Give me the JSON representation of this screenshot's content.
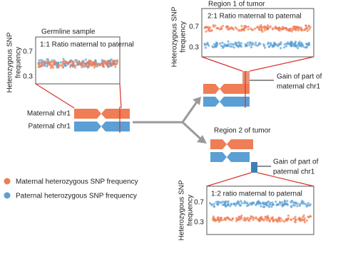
{
  "germline": {
    "title": "Germline sample",
    "ratio": "1:1 Ratio maternal to paternal",
    "y_axis_label": [
      "Heterozygous SNP",
      "frequency"
    ],
    "ticks": [
      "0.7",
      "0.3"
    ]
  },
  "chromosomes": {
    "maternal": "Maternal chr1",
    "paternal": "Paternal chr1"
  },
  "region1": {
    "title": "Region 1 of tumor",
    "ratio": "2:1 Ratio maternal to paternal",
    "y_axis_label": [
      "Heterozygous SNP",
      "frequency"
    ],
    "ticks": [
      "0.7",
      "0.3"
    ],
    "annotation": [
      "Gain of part of",
      "maternal chr1"
    ]
  },
  "region2": {
    "title": "Region 2 of tumor",
    "ratio": "1:2 ratio maternal to paternal",
    "y_axis_label": [
      "Heterozygous SNP",
      "frequency"
    ],
    "ticks": [
      "0.7",
      "0.3"
    ],
    "annotation": [
      "Gain of part of",
      "paternal chr1"
    ]
  },
  "legend": [
    "Maternal heterozygous SNP frequency",
    "Paternal heterozygous SNP frequency"
  ]
}
